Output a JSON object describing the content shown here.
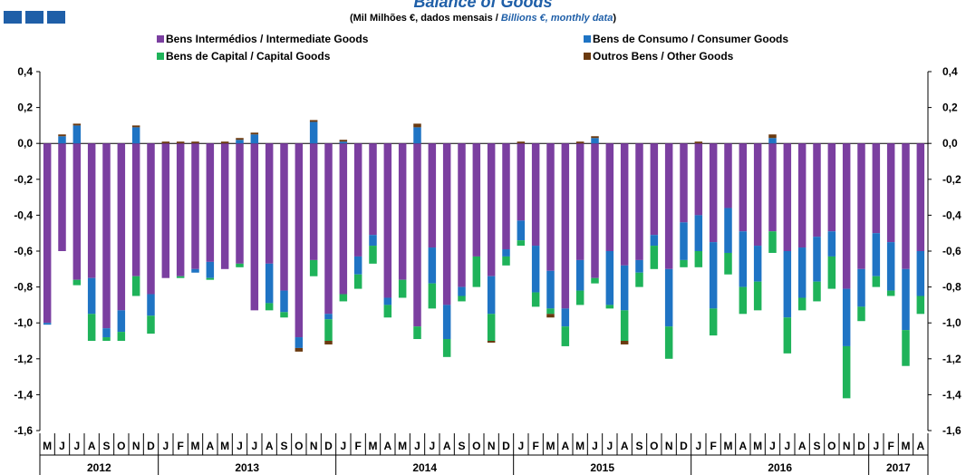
{
  "header": {
    "title": "Balance of Goods",
    "subtitle_pt": "(Mil Milhões €, dados mensais / ",
    "subtitle_en": "Billions  €, monthly data",
    "subtitle_end": ")",
    "square_color": "#1f5fa8"
  },
  "chart_data": {
    "type": "bar",
    "stacked": true,
    "ylim": [
      -1.6,
      0.4
    ],
    "yticks": [
      "0,4",
      "0,2",
      "0,0",
      "-0,2",
      "-0,4",
      "-0,6",
      "-0,8",
      "-1,0",
      "-1,2",
      "-1,4",
      "-1,6"
    ],
    "ytick_values": [
      0.4,
      0.2,
      0.0,
      -0.2,
      -0.4,
      -0.6,
      -0.8,
      -1.0,
      -1.2,
      -1.4,
      -1.6
    ],
    "grid": false,
    "legend_position": "top",
    "months": [
      "M",
      "J",
      "J",
      "A",
      "S",
      "O",
      "N",
      "D",
      "J",
      "F",
      "M",
      "A",
      "M",
      "J",
      "J",
      "A",
      "S",
      "O",
      "N",
      "D",
      "J",
      "F",
      "M",
      "A",
      "M",
      "J",
      "J",
      "A",
      "S",
      "O",
      "N",
      "D",
      "J",
      "F",
      "M",
      "A",
      "M",
      "J",
      "J",
      "A",
      "S",
      "O",
      "N",
      "D",
      "J",
      "F",
      "M",
      "A",
      "M",
      "J",
      "J",
      "A",
      "S",
      "O",
      "N",
      "D",
      "J",
      "F",
      "M",
      "A"
    ],
    "years": [
      {
        "label": "2012",
        "start": 0,
        "count": 8
      },
      {
        "label": "2013",
        "start": 8,
        "count": 12
      },
      {
        "label": "2014",
        "start": 20,
        "count": 12
      },
      {
        "label": "2015",
        "start": 32,
        "count": 12
      },
      {
        "label": "2016",
        "start": 44,
        "count": 12
      },
      {
        "label": "2017",
        "start": 56,
        "count": 4
      }
    ],
    "series": [
      {
        "name": "Bens Intermédios / Intermediate Goods",
        "color": "#7b3fa0",
        "values": [
          -1.0,
          -0.6,
          -0.76,
          -0.75,
          -1.03,
          -0.93,
          -0.74,
          -0.84,
          -0.75,
          -0.74,
          -0.7,
          -0.66,
          -0.7,
          -0.67,
          -0.93,
          -0.67,
          -0.82,
          -1.08,
          -0.65,
          -0.95,
          -0.84,
          -0.63,
          -0.51,
          -0.86,
          -0.76,
          -1.02,
          -0.58,
          -0.9,
          -0.8,
          -0.63,
          -0.74,
          -0.59,
          -0.43,
          -0.57,
          -0.71,
          -0.92,
          -0.65,
          -0.75,
          -0.6,
          -0.68,
          -0.65,
          -0.51,
          -0.7,
          -0.44,
          -0.4,
          -0.55,
          -0.36,
          -0.49,
          -0.57,
          -0.49,
          -0.6,
          -0.58,
          -0.52,
          -0.49,
          -0.81,
          -0.7,
          -0.5,
          -0.55,
          -0.7,
          -0.6
        ]
      },
      {
        "name": "Bens de Consumo / Consumer Goods",
        "color": "#1f74c4",
        "values": [
          -0.01,
          0.04,
          0.1,
          -0.2,
          -0.05,
          -0.12,
          0.09,
          -0.12,
          0.0,
          0.0,
          -0.02,
          -0.09,
          0.0,
          0.02,
          0.05,
          -0.22,
          -0.12,
          -0.06,
          0.12,
          -0.03,
          0.01,
          -0.1,
          -0.06,
          -0.04,
          0.0,
          0.09,
          -0.2,
          -0.19,
          -0.05,
          0.0,
          -0.21,
          -0.04,
          -0.11,
          -0.26,
          -0.21,
          -0.1,
          -0.17,
          0.03,
          -0.3,
          -0.25,
          -0.07,
          -0.06,
          -0.32,
          -0.21,
          -0.2,
          -0.37,
          -0.25,
          -0.31,
          -0.2,
          0.03,
          -0.37,
          -0.28,
          -0.25,
          -0.14,
          -0.32,
          -0.21,
          -0.24,
          -0.27,
          -0.34,
          -0.25
        ]
      },
      {
        "name": "Bens de Capital / Capital Goods",
        "color": "#1fb35a",
        "values": [
          0.0,
          0.0,
          -0.03,
          -0.15,
          -0.02,
          -0.05,
          -0.11,
          -0.1,
          0.0,
          -0.01,
          0.0,
          -0.01,
          0.0,
          -0.02,
          0.0,
          -0.04,
          -0.03,
          0.0,
          -0.09,
          -0.12,
          -0.04,
          -0.08,
          -0.1,
          -0.07,
          -0.1,
          -0.07,
          -0.14,
          -0.1,
          -0.03,
          -0.17,
          -0.15,
          -0.05,
          -0.03,
          -0.08,
          -0.03,
          -0.11,
          -0.08,
          -0.03,
          -0.02,
          -0.17,
          -0.08,
          -0.13,
          -0.18,
          -0.04,
          -0.09,
          -0.15,
          -0.12,
          -0.15,
          -0.16,
          -0.12,
          -0.2,
          -0.07,
          -0.11,
          -0.18,
          -0.29,
          -0.08,
          -0.06,
          -0.03,
          -0.2,
          -0.1
        ]
      },
      {
        "name": "Outros Bens / Other Goods",
        "color": "#6b3a10",
        "values": [
          0.0,
          0.01,
          0.01,
          0.0,
          0.0,
          0.0,
          0.01,
          0.0,
          0.01,
          0.01,
          0.01,
          0.0,
          0.01,
          0.01,
          0.01,
          0.0,
          0.0,
          -0.02,
          0.01,
          -0.02,
          0.01,
          0.0,
          0.0,
          0.0,
          0.0,
          0.02,
          0.0,
          0.0,
          0.0,
          0.0,
          -0.01,
          0.0,
          0.01,
          0.0,
          -0.02,
          0.0,
          0.01,
          0.01,
          0.0,
          -0.02,
          0.0,
          0.0,
          0.0,
          0.0,
          0.01,
          0.0,
          0.0,
          0.0,
          0.0,
          0.02,
          0.0,
          0.0,
          0.0,
          0.0,
          0.0,
          0.0,
          0.0,
          0.0,
          0.0,
          0.0
        ]
      }
    ]
  }
}
